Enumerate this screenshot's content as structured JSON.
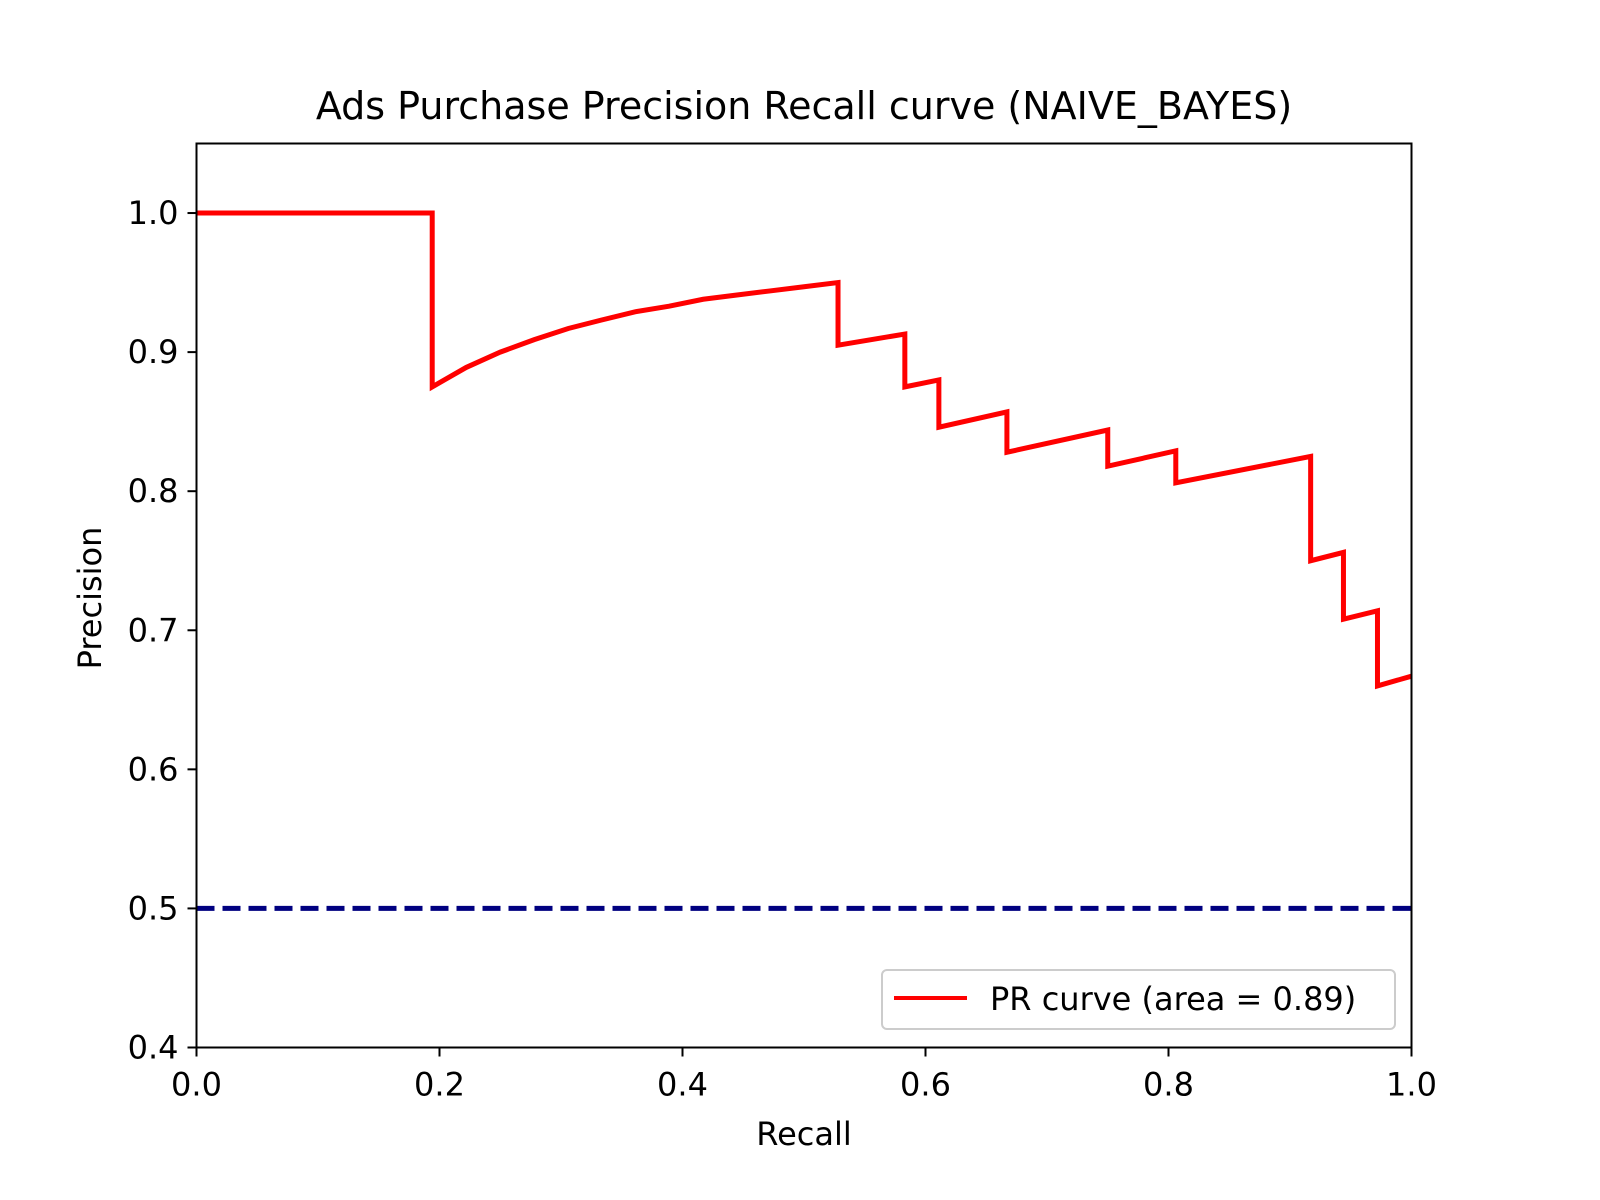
{
  "chart_data": {
    "type": "line",
    "title": "Ads Purchase Precision Recall curve (NAIVE_BAYES)",
    "xlabel": "Recall",
    "ylabel": "Precision",
    "xlim": [
      0.0,
      1.0
    ],
    "ylim": [
      0.4,
      1.05
    ],
    "xticks": [
      0.0,
      0.2,
      0.4,
      0.6,
      0.8,
      1.0
    ],
    "xtick_labels": [
      "0.0",
      "0.2",
      "0.4",
      "0.6",
      "0.8",
      "1.0"
    ],
    "yticks": [
      0.4,
      0.5,
      0.6,
      0.7,
      0.8,
      0.9,
      1.0
    ],
    "ytick_labels": [
      "0.4",
      "0.5",
      "0.6",
      "0.7",
      "0.8",
      "0.9",
      "1.0"
    ],
    "grid": false,
    "legend_position": "lower-right",
    "series": [
      {
        "name": "PR curve (area = 0.89)",
        "color": "#ff0000",
        "linestyle": "solid",
        "points": [
          [
            0.0,
            1.0
          ],
          [
            0.194,
            1.0
          ],
          [
            0.194,
            0.875
          ],
          [
            0.222,
            0.889
          ],
          [
            0.25,
            0.9
          ],
          [
            0.278,
            0.909
          ],
          [
            0.306,
            0.917
          ],
          [
            0.333,
            0.923
          ],
          [
            0.361,
            0.929
          ],
          [
            0.389,
            0.933
          ],
          [
            0.417,
            0.938
          ],
          [
            0.444,
            0.941
          ],
          [
            0.472,
            0.944
          ],
          [
            0.5,
            0.947
          ],
          [
            0.528,
            0.95
          ],
          [
            0.528,
            0.905
          ],
          [
            0.583,
            0.913
          ],
          [
            0.583,
            0.875
          ],
          [
            0.611,
            0.88
          ],
          [
            0.611,
            0.846
          ],
          [
            0.667,
            0.857
          ],
          [
            0.667,
            0.828
          ],
          [
            0.75,
            0.844
          ],
          [
            0.75,
            0.818
          ],
          [
            0.806,
            0.829
          ],
          [
            0.806,
            0.806
          ],
          [
            0.917,
            0.825
          ],
          [
            0.917,
            0.75
          ],
          [
            0.944,
            0.756
          ],
          [
            0.944,
            0.708
          ],
          [
            0.972,
            0.714
          ],
          [
            0.972,
            0.66
          ],
          [
            1.0,
            0.667
          ]
        ]
      },
      {
        "name": "",
        "color": "#000080",
        "linestyle": "dashed",
        "points": [
          [
            0.0,
            0.5
          ],
          [
            1.0,
            0.5
          ]
        ]
      }
    ]
  }
}
